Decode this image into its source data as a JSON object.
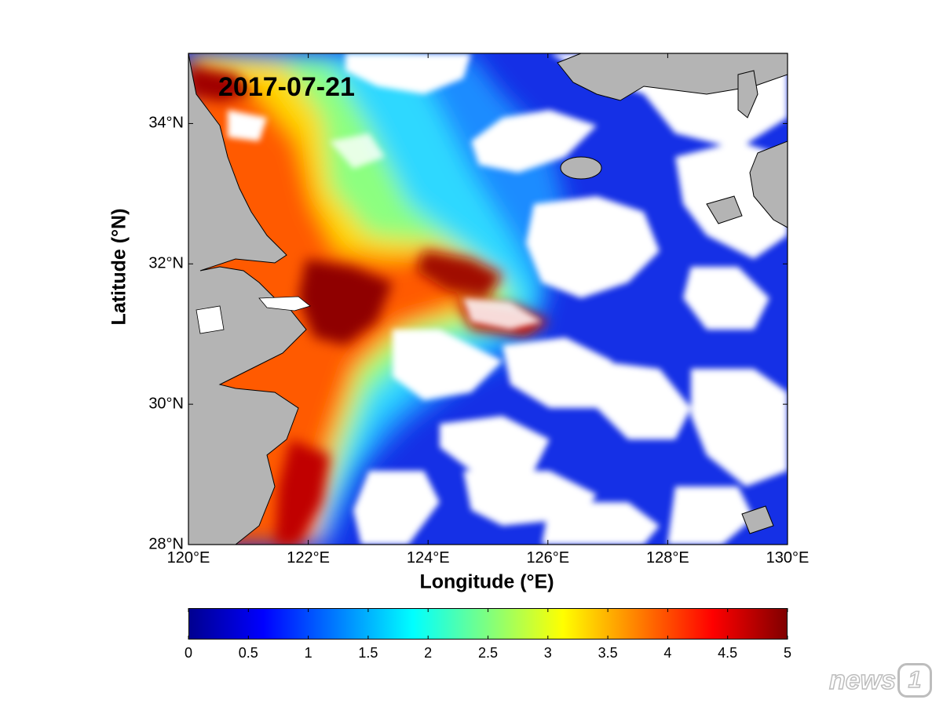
{
  "map": {
    "date": "2017-07-21",
    "x_axis": {
      "title": "Longitude (°E)",
      "range": [
        120,
        130
      ],
      "ticks": [
        {
          "value": 120,
          "label": "120°E"
        },
        {
          "value": 122,
          "label": "122°E"
        },
        {
          "value": 124,
          "label": "124°E"
        },
        {
          "value": 126,
          "label": "126°E"
        },
        {
          "value": 128,
          "label": "128°E"
        },
        {
          "value": 130,
          "label": "130°E"
        }
      ]
    },
    "y_axis": {
      "title": "Latitude (°N)",
      "range": [
        28,
        35
      ],
      "ticks": [
        {
          "value": 28,
          "label": "28°N"
        },
        {
          "value": 30,
          "label": "30°N"
        },
        {
          "value": 32,
          "label": "32°N"
        },
        {
          "value": 34,
          "label": "34°N"
        }
      ]
    },
    "colorbar": {
      "colormap": "jet",
      "range": [
        0,
        5
      ],
      "ticks": [
        "0",
        "0.5",
        "1",
        "1.5",
        "2",
        "2.5",
        "3",
        "3.5",
        "4",
        "4.5",
        "5"
      ]
    },
    "colors": {
      "land": "#b4b4b4",
      "cloud_mask": "#ffffff",
      "frame": "#000000"
    }
  },
  "watermark": {
    "text": "news",
    "badge": "1"
  }
}
